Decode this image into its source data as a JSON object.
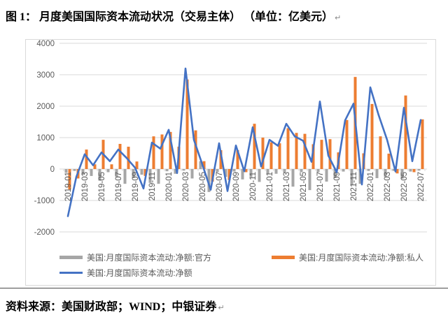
{
  "page": {
    "title": "图 1：  月度美国国际资本流动状况（交易主体） （单位：亿美元）",
    "paragraph_mark": "↵",
    "source_note": "资料来源：美国财政部；WIND；中银证券"
  },
  "legend": {
    "official": {
      "label": "美国:月度国际资本流动:净额:官方",
      "color": "#a6a6a6"
    },
    "private": {
      "label": "美国:月度国际资本流动:净额:私人",
      "color": "#ed7d31"
    },
    "net": {
      "label": "美国:月度国际资本流动:净额",
      "color": "#4472c4"
    }
  },
  "colors": {
    "official_bar": "#a6a6a6",
    "private_bar": "#ed7d31",
    "net_line": "#4472c4",
    "grid": "#d9d9d9",
    "axis_text": "#595959"
  },
  "chart_data": {
    "type": "bar+line",
    "title": "月度美国国际资本流动状况（交易主体）",
    "unit": "亿美元",
    "ylim": [
      -2000,
      4000
    ],
    "y_tick_step": 1000,
    "y_ticks": [
      4000,
      3000,
      2000,
      1000,
      0,
      -1000,
      -2000
    ],
    "grid": true,
    "legend_position": "bottom",
    "months": [
      "2019-01",
      "2019-02",
      "2019-03",
      "2019-04",
      "2019-05",
      "2019-06",
      "2019-07",
      "2019-08",
      "2019-09",
      "2019-10",
      "2019-11",
      "2019-12",
      "2020-01",
      "2020-02",
      "2020-03",
      "2020-04",
      "2020-05",
      "2020-06",
      "2020-07",
      "2020-08",
      "2020-09",
      "2020-10",
      "2020-11",
      "2020-12",
      "2021-01",
      "2021-02",
      "2021-03",
      "2021-04",
      "2021-05",
      "2021-06",
      "2021-07",
      "2021-08",
      "2021-09",
      "2021-10",
      "2021-11",
      "2021-12",
      "2022-01",
      "2022-02",
      "2022-03",
      "2022-04",
      "2022-05",
      "2022-06",
      "2022-07"
    ],
    "x_tick_labels": [
      "2019-01",
      "2019-03",
      "2019-05",
      "2019-07",
      "2019-09",
      "2019-11",
      "2020-01",
      "2020-03",
      "2020-05",
      "2020-07",
      "2020-09",
      "2020-11",
      "2021-01",
      "2021-03",
      "2021-05",
      "2021-07",
      "2021-09",
      "2021-11",
      "2022-01",
      "2022-03",
      "2022-05",
      "2022-07"
    ],
    "series": [
      {
        "name": "美国:月度国际资本流动:净额:官方",
        "type": "bar",
        "color": "#a6a6a6",
        "values": [
          -120,
          -60,
          -180,
          -220,
          -370,
          -100,
          -250,
          -470,
          -290,
          -180,
          -440,
          -470,
          -70,
          -150,
          -50,
          -300,
          250,
          -730,
          -100,
          -250,
          -80,
          -330,
          -260,
          -410,
          -150,
          -150,
          -110,
          -560,
          -100,
          -670,
          -100,
          -400,
          -290,
          -80,
          -510,
          -470,
          -60,
          -290,
          -250,
          -60,
          -310,
          -80,
          -50
        ]
      },
      {
        "name": "美国:月度国际资本流动:净额:私人",
        "type": "bar",
        "color": "#ed7d31",
        "values": [
          -650,
          -300,
          620,
          150,
          930,
          150,
          800,
          710,
          240,
          -220,
          1040,
          1100,
          1180,
          710,
          2850,
          1230,
          250,
          -400,
          600,
          -350,
          600,
          -100,
          1440,
          1000,
          850,
          820,
          1300,
          1150,
          1120,
          790,
          930,
          950,
          530,
          1560,
          2930,
          500,
          2070,
          1040,
          490,
          -140,
          2340,
          -100,
          1580
        ]
      },
      {
        "name": "美国:月度国际资本流动:净额",
        "type": "line",
        "color": "#4472c4",
        "values": [
          -1500,
          -250,
          470,
          120,
          530,
          250,
          620,
          350,
          40,
          -620,
          840,
          650,
          1250,
          -130,
          3200,
          930,
          150,
          -660,
          820,
          -700,
          750,
          -70,
          1330,
          80,
          930,
          740,
          1440,
          1040,
          900,
          230,
          2150,
          430,
          -100,
          1550,
          2080,
          -490,
          2600,
          1710,
          930,
          -80,
          1950,
          250,
          1560
        ]
      }
    ]
  }
}
